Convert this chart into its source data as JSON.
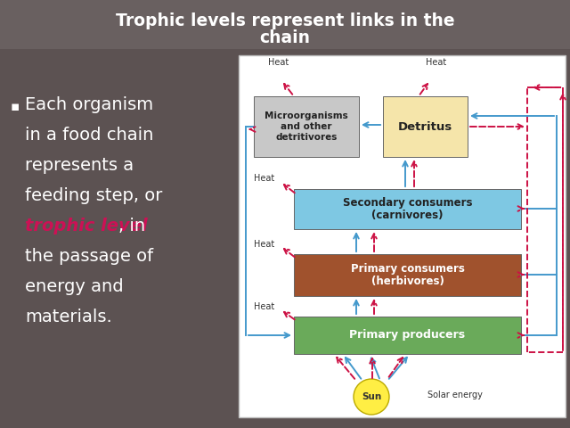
{
  "title_line1": "Trophic levels represent links in the",
  "title_line2": "chain",
  "title_bg": "#696060",
  "slide_bg": "#5c5252",
  "bullet_lines_normal": [
    "Each organism",
    "in a food chain",
    "represents a",
    "feeding step, or",
    "",
    "the passage of",
    "energy and",
    "materials."
  ],
  "highlight_line": 4,
  "highlight_text": "trophic level",
  "highlight_suffix": ", in",
  "bullet_color": "#ffffff",
  "highlight_color": "#cc1155",
  "diagram_bg": "#ffffff",
  "diagram_border": "#bbbbbb",
  "box_colors": {
    "microorganisms": "#c8c8c8",
    "detritus": "#f5e5aa",
    "secondary": "#7ec8e3",
    "primary_consumers": "#a0522d",
    "primary_producers": "#6aaa5a",
    "sun": "#ffee44"
  },
  "arrow_blue": "#4499cc",
  "arrow_pink": "#cc1144",
  "heat_color": "#333333",
  "solar_color": "#333333"
}
